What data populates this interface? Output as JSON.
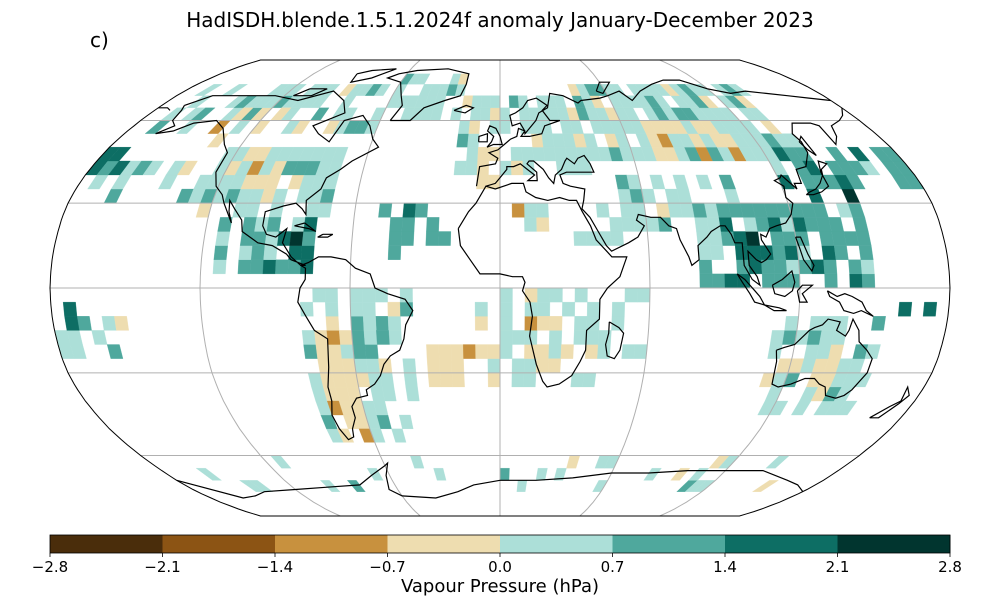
{
  "title": "HadISDH.blende.1.5.1.2024f anomaly January-December 2023",
  "panel_label": "c)",
  "projection": "Robinson",
  "colorbar": {
    "label": "Vapour Pressure (hPa)",
    "ticks": [
      "−2.8",
      "−2.1",
      "−1.4",
      "−0.7",
      "0.0",
      "0.7",
      "1.4",
      "2.1",
      "2.8"
    ],
    "bins": [
      {
        "range": [
          -2.8,
          -2.1
        ],
        "color": "#4a2d0b"
      },
      {
        "range": [
          -2.1,
          -1.4
        ],
        "color": "#8c5414"
      },
      {
        "range": [
          -1.4,
          -0.7
        ],
        "color": "#c8913e"
      },
      {
        "range": [
          -0.7,
          0.0
        ],
        "color": "#eeddb0"
      },
      {
        "range": [
          0.0,
          0.7
        ],
        "color": "#acdfd8"
      },
      {
        "range": [
          0.7,
          1.4
        ],
        "color": "#4fa89d"
      },
      {
        "range": [
          1.4,
          2.1
        ],
        "color": "#0d6e64"
      },
      {
        "range": [
          2.1,
          2.8
        ],
        "color": "#01352f"
      }
    ]
  },
  "grid": {
    "meridians": [
      -120,
      -60,
      0,
      60,
      120
    ],
    "parallels": [
      -60,
      -30,
      0,
      30,
      60
    ]
  },
  "colors": {
    "coast": "#000000",
    "grid": "#b0b0b0"
  }
}
